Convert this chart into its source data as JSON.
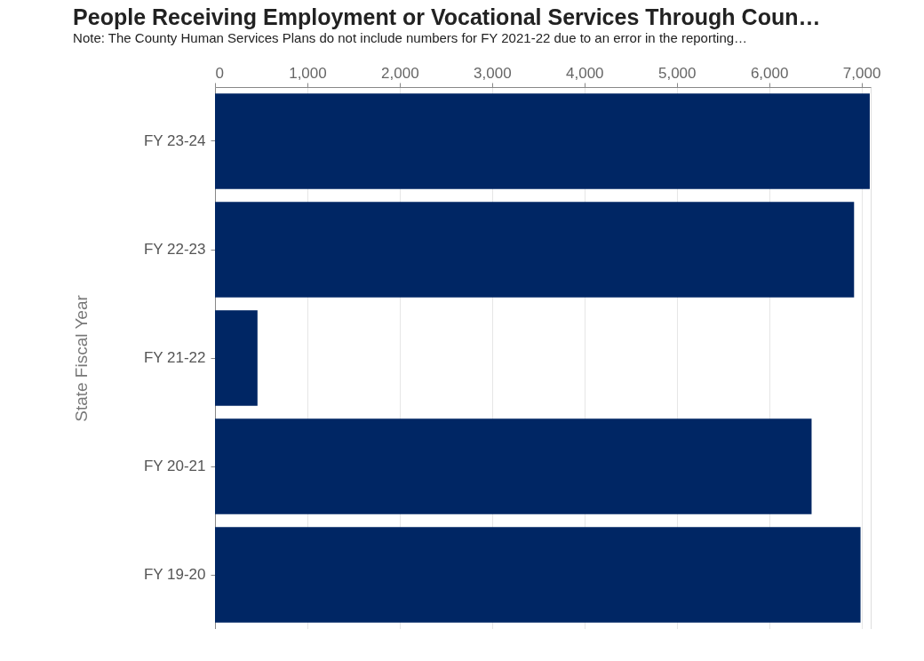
{
  "chart_data": {
    "type": "bar",
    "orientation": "horizontal",
    "title": "People Receiving Employment or Vocational Services Through Coun…",
    "subtitle": "Note: The County Human Services Plans do not include numbers for FY 2021-22 due to an error in the reporting…",
    "ylabel": "State Fiscal Year",
    "categories": [
      "FY 23-24",
      "FY 22-23",
      "FY 21-22",
      "FY 20-21",
      "FY 19-20"
    ],
    "values": [
      7090,
      6920,
      460,
      6460,
      6990
    ],
    "color": "#002664",
    "xlim": [
      0,
      7100
    ],
    "xticks": [
      0,
      {
        "value": 1000,
        "label": "1,000"
      },
      {
        "value": 2000,
        "label": "2,000"
      },
      {
        "value": 3000,
        "label": "3,000"
      },
      {
        "value": 4000,
        "label": "4,000"
      },
      {
        "value": 5000,
        "label": "5,000"
      },
      {
        "value": 6000,
        "label": "6,000"
      },
      {
        "value": 7000,
        "label": "7,000"
      }
    ],
    "grid": "x"
  }
}
